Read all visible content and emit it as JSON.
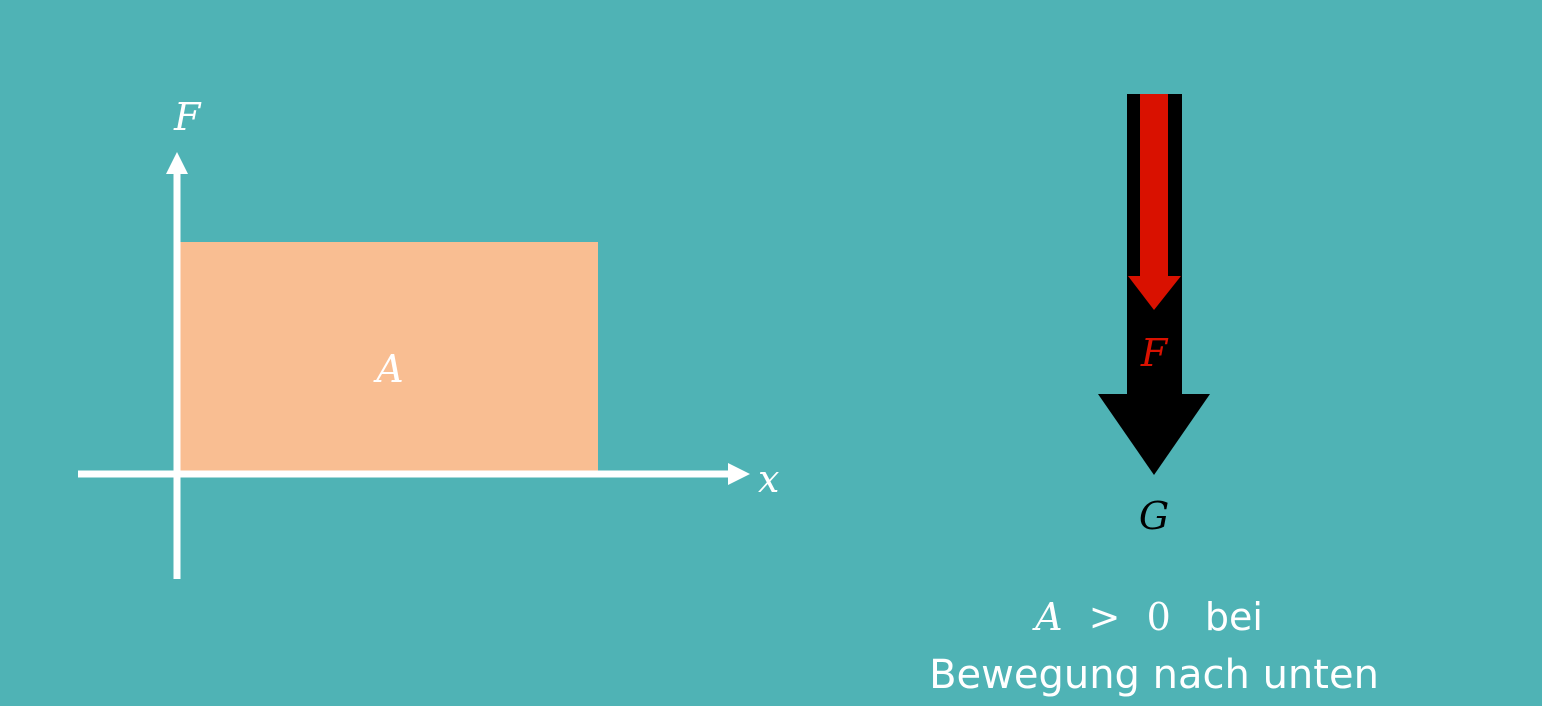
{
  "colors": {
    "background": "#4FB3B5",
    "axis": "#FFFFFF",
    "area_fill": "#F9BE92",
    "force_arrow": "#D91100",
    "gravity_arrow": "#000000",
    "label_light": "#FFFFFF"
  },
  "graph": {
    "y_axis_label": "F",
    "x_axis_label": "x",
    "area_label": "A"
  },
  "forces": {
    "force_label": "F",
    "gravity_label": "G"
  },
  "caption": {
    "symbol": "A",
    "relation": ">",
    "value": "0",
    "suffix": "bei",
    "line2": "Bewegung nach unten"
  }
}
